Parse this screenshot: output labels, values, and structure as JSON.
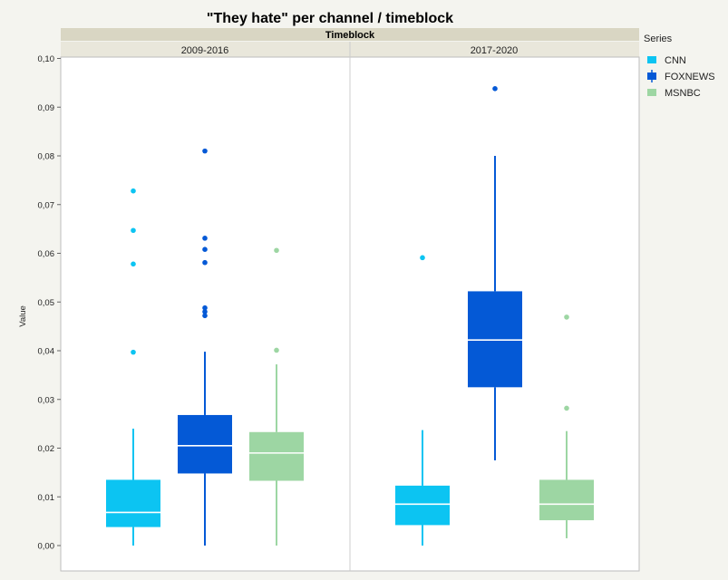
{
  "chart_data": {
    "type": "box",
    "title": "\"They hate\" per channel / timeblock",
    "group_header": "Timeblock",
    "ylabel": "Value",
    "ylim": [
      0,
      0.105
    ],
    "yticks": [
      "0,00",
      "0,01",
      "0,02",
      "0,03",
      "0,04",
      "0,05",
      "0,06",
      "0,07",
      "0,08",
      "0,09",
      "0,10"
    ],
    "legend_title": "Series",
    "legend_placement": "right",
    "grid": false,
    "panels": [
      {
        "label": "2009-2016",
        "boxes": [
          {
            "series": "CNN",
            "min": 0.0,
            "q1": 0.0038,
            "median": 0.0068,
            "q3": 0.0135,
            "max": 0.024,
            "outliers": [
              0.0397,
              0.0578,
              0.0647,
              0.0728
            ]
          },
          {
            "series": "FOXNEWS",
            "min": 0.0,
            "q1": 0.0148,
            "median": 0.0205,
            "q3": 0.0268,
            "max": 0.0398,
            "outliers": [
              0.0472,
              0.048,
              0.0488,
              0.0581,
              0.0608,
              0.0631,
              0.081
            ]
          },
          {
            "series": "MSNBC",
            "min": 0.0,
            "q1": 0.0133,
            "median": 0.019,
            "q3": 0.0233,
            "max": 0.0372,
            "outliers": [
              0.0401,
              0.0606
            ]
          }
        ]
      },
      {
        "label": "2017-2020",
        "boxes": [
          {
            "series": "CNN",
            "min": 0.0,
            "q1": 0.0042,
            "median": 0.0085,
            "q3": 0.0123,
            "max": 0.0237,
            "outliers": [
              0.0591
            ]
          },
          {
            "series": "FOXNEWS",
            "min": 0.0175,
            "q1": 0.0325,
            "median": 0.0422,
            "q3": 0.0522,
            "max": 0.08,
            "outliers": [
              0.0938
            ]
          },
          {
            "series": "MSNBC",
            "min": 0.0015,
            "q1": 0.0052,
            "median": 0.0085,
            "q3": 0.0135,
            "max": 0.0235,
            "outliers": [
              0.0282,
              0.0469
            ]
          }
        ]
      }
    ],
    "series": [
      {
        "name": "CNN",
        "color": "#0cc4f2"
      },
      {
        "name": "FOXNEWS",
        "color": "#0459d6"
      },
      {
        "name": "MSNBC",
        "color": "#9dd6a3"
      }
    ]
  }
}
